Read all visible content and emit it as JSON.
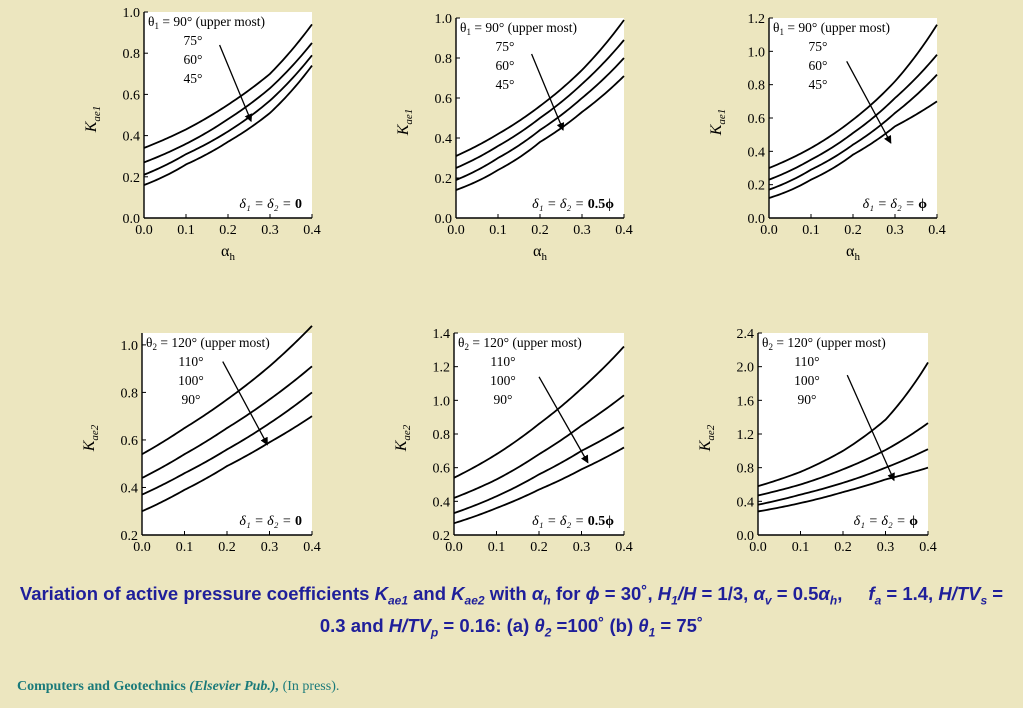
{
  "chart_data": [
    {
      "type": "line",
      "ylabel_base": "K",
      "ylabel_sub": "ae1",
      "xlabel_base": "α",
      "xlabel_sub": "h",
      "xticks": [
        "0.0",
        "0.1",
        "0.2",
        "0.3",
        "0.4"
      ],
      "xlim": [
        0,
        0.4
      ],
      "yticks": [
        "0.0",
        "0.2",
        "0.4",
        "0.6",
        "0.8",
        "1.0"
      ],
      "ylim": [
        0,
        1.0
      ],
      "legend_title_sym": "θ",
      "legend_title_sub": "1",
      "legend_title_rest": " = 90° (upper most)",
      "legend_items": [
        "75°",
        "60°",
        "45°"
      ],
      "condition": {
        "pre": "δ₁ = δ₂ = ",
        "val": "0"
      },
      "arrow": {
        "from": [
          0.18,
          0.84
        ],
        "to": [
          0.255,
          0.47
        ]
      },
      "series": [
        {
          "x": [
            0,
            0.1,
            0.2,
            0.3,
            0.4
          ],
          "values": [
            0.34,
            0.43,
            0.55,
            0.7,
            0.94
          ]
        },
        {
          "x": [
            0,
            0.1,
            0.2,
            0.3,
            0.4
          ],
          "values": [
            0.27,
            0.36,
            0.48,
            0.63,
            0.85
          ]
        },
        {
          "x": [
            0,
            0.1,
            0.2,
            0.3,
            0.4
          ],
          "values": [
            0.21,
            0.31,
            0.42,
            0.57,
            0.79
          ]
        },
        {
          "x": [
            0,
            0.1,
            0.2,
            0.3,
            0.4
          ],
          "values": [
            0.16,
            0.26,
            0.37,
            0.51,
            0.74
          ]
        }
      ]
    },
    {
      "type": "line",
      "ylabel_base": "K",
      "ylabel_sub": "ae1",
      "xlabel_base": "α",
      "xlabel_sub": "h",
      "xticks": [
        "0.0",
        "0.1",
        "0.2",
        "0.3",
        "0.4"
      ],
      "xlim": [
        0,
        0.4
      ],
      "yticks": [
        "0.0",
        "0.2",
        "0.4",
        "0.6",
        "0.8",
        "1.0"
      ],
      "ylim": [
        0,
        1.0
      ],
      "legend_title_sym": "θ",
      "legend_title_sub": "1",
      "legend_title_rest": " = 90° (upper most)",
      "legend_items": [
        "75°",
        "60°",
        "45°"
      ],
      "condition": {
        "pre": "δ₁ = δ₂ = ",
        "val": "0.5ϕ"
      },
      "arrow": {
        "from": [
          0.18,
          0.82
        ],
        "to": [
          0.255,
          0.44
        ]
      },
      "series": [
        {
          "x": [
            0,
            0.1,
            0.2,
            0.3,
            0.4
          ],
          "values": [
            0.31,
            0.42,
            0.56,
            0.74,
            0.99
          ]
        },
        {
          "x": [
            0,
            0.1,
            0.2,
            0.3,
            0.4
          ],
          "values": [
            0.25,
            0.36,
            0.5,
            0.67,
            0.89
          ]
        },
        {
          "x": [
            0,
            0.1,
            0.2,
            0.3,
            0.4
          ],
          "values": [
            0.19,
            0.3,
            0.44,
            0.6,
            0.8
          ]
        },
        {
          "x": [
            0,
            0.1,
            0.2,
            0.3,
            0.4
          ],
          "values": [
            0.14,
            0.24,
            0.38,
            0.53,
            0.71
          ]
        }
      ]
    },
    {
      "type": "line",
      "ylabel_base": "K",
      "ylabel_sub": "ae1",
      "xlabel_base": "α",
      "xlabel_sub": "h",
      "xticks": [
        "0.0",
        "0.1",
        "0.2",
        "0.3",
        "0.4"
      ],
      "xlim": [
        0,
        0.4
      ],
      "yticks": [
        "0.0",
        "0.2",
        "0.4",
        "0.6",
        "0.8",
        "1.0",
        "1.2"
      ],
      "ylim": [
        0,
        1.2
      ],
      "legend_title_sym": "θ",
      "legend_title_sub": "1",
      "legend_title_rest": " = 90° (upper most)",
      "legend_items": [
        "75°",
        "60°",
        "45°"
      ],
      "condition": {
        "pre": "δ₁ = δ₂ = ",
        "val": "ϕ"
      },
      "arrow": {
        "from": [
          0.185,
          0.94
        ],
        "to": [
          0.29,
          0.45
        ]
      },
      "series": [
        {
          "x": [
            0,
            0.1,
            0.2,
            0.3,
            0.4
          ],
          "values": [
            0.3,
            0.42,
            0.59,
            0.82,
            1.16
          ]
        },
        {
          "x": [
            0,
            0.1,
            0.2,
            0.3,
            0.4
          ],
          "values": [
            0.23,
            0.35,
            0.51,
            0.72,
            0.98
          ]
        },
        {
          "x": [
            0,
            0.1,
            0.2,
            0.3,
            0.4
          ],
          "values": [
            0.17,
            0.29,
            0.44,
            0.63,
            0.86
          ]
        },
        {
          "x": [
            0,
            0.1,
            0.2,
            0.3,
            0.4
          ],
          "values": [
            0.12,
            0.23,
            0.38,
            0.55,
            0.7
          ]
        }
      ]
    },
    {
      "type": "line",
      "ylabel_base": "K",
      "ylabel_sub": "ae2",
      "xlabel_base": "α",
      "xlabel_sub": "h",
      "xticks": [
        "0.0",
        "0.1",
        "0.2",
        "0.3",
        "0.4"
      ],
      "xlim": [
        0,
        0.4
      ],
      "yticks": [
        "0.2",
        "0.4",
        "0.6",
        "0.8",
        "1.0"
      ],
      "ylim": [
        0.2,
        1.05
      ],
      "legend_title_sym": "θ",
      "legend_title_sub": "2",
      "legend_title_rest": " = 120° (upper most)",
      "legend_items": [
        "110°",
        "100°",
        "90°"
      ],
      "condition": {
        "pre": "δ₁ = δ₂ = ",
        "val": "0"
      },
      "arrow": {
        "from": [
          0.19,
          0.93
        ],
        "to": [
          0.295,
          0.58
        ]
      },
      "series": [
        {
          "x": [
            0,
            0.1,
            0.2,
            0.3,
            0.4
          ],
          "values": [
            0.54,
            0.65,
            0.77,
            0.91,
            1.08
          ]
        },
        {
          "x": [
            0,
            0.1,
            0.2,
            0.3,
            0.4
          ],
          "values": [
            0.44,
            0.54,
            0.65,
            0.77,
            0.91
          ]
        },
        {
          "x": [
            0,
            0.1,
            0.2,
            0.3,
            0.4
          ],
          "values": [
            0.37,
            0.46,
            0.56,
            0.67,
            0.8
          ]
        },
        {
          "x": [
            0,
            0.1,
            0.2,
            0.3,
            0.4
          ],
          "values": [
            0.3,
            0.39,
            0.49,
            0.59,
            0.7
          ]
        }
      ]
    },
    {
      "type": "line",
      "ylabel_base": "K",
      "ylabel_sub": "ae2",
      "xlabel_base": "α",
      "xlabel_sub": "h",
      "xticks": [
        "0.0",
        "0.1",
        "0.2",
        "0.3",
        "0.4"
      ],
      "xlim": [
        0,
        0.4
      ],
      "yticks": [
        "0.2",
        "0.4",
        "0.6",
        "0.8",
        "1.0",
        "1.2",
        "1.4"
      ],
      "ylim": [
        0.2,
        1.4
      ],
      "legend_title_sym": "θ",
      "legend_title_sub": "2",
      "legend_title_rest": " = 120° (upper most)",
      "legend_items": [
        "110°",
        "100°",
        "90°"
      ],
      "condition": {
        "pre": "δ₁ = δ₂ = ",
        "val": "0.5ϕ"
      },
      "arrow": {
        "from": [
          0.2,
          1.14
        ],
        "to": [
          0.315,
          0.63
        ]
      },
      "series": [
        {
          "x": [
            0,
            0.1,
            0.2,
            0.3,
            0.4
          ],
          "values": [
            0.54,
            0.68,
            0.86,
            1.07,
            1.32
          ]
        },
        {
          "x": [
            0,
            0.1,
            0.2,
            0.3,
            0.4
          ],
          "values": [
            0.42,
            0.53,
            0.68,
            0.85,
            1.03
          ]
        },
        {
          "x": [
            0,
            0.1,
            0.2,
            0.3,
            0.4
          ],
          "values": [
            0.33,
            0.43,
            0.56,
            0.7,
            0.84
          ]
        },
        {
          "x": [
            0,
            0.1,
            0.2,
            0.3,
            0.4
          ],
          "values": [
            0.27,
            0.36,
            0.47,
            0.59,
            0.72
          ]
        }
      ]
    },
    {
      "type": "line",
      "ylabel_base": "K",
      "ylabel_sub": "ae2",
      "xlabel_base": "α",
      "xlabel_sub": "h",
      "xticks": [
        "0.0",
        "0.1",
        "0.2",
        "0.3",
        "0.4"
      ],
      "xlim": [
        0,
        0.4
      ],
      "yticks": [
        "0.0",
        "0.4",
        "0.8",
        "1.2",
        "1.6",
        "2.0",
        "2.4"
      ],
      "ylim": [
        0,
        2.4
      ],
      "legend_title_sym": "θ",
      "legend_title_sub": "2",
      "legend_title_rest": " = 120° (upper most)",
      "legend_items": [
        "110°",
        "100°",
        "90°"
      ],
      "condition": {
        "pre": "δ₁ = δ₂ = ",
        "val": "ϕ"
      },
      "arrow": {
        "from": [
          0.21,
          1.9
        ],
        "to": [
          0.32,
          0.65
        ]
      },
      "series": [
        {
          "x": [
            0,
            0.1,
            0.2,
            0.3,
            0.4
          ],
          "values": [
            0.58,
            0.75,
            1.0,
            1.37,
            2.05
          ]
        },
        {
          "x": [
            0,
            0.1,
            0.2,
            0.3,
            0.4
          ],
          "values": [
            0.47,
            0.6,
            0.78,
            1.01,
            1.33
          ]
        },
        {
          "x": [
            0,
            0.1,
            0.2,
            0.3,
            0.4
          ],
          "values": [
            0.36,
            0.48,
            0.62,
            0.8,
            1.02
          ]
        },
        {
          "x": [
            0,
            0.1,
            0.2,
            0.3,
            0.4
          ],
          "values": [
            0.28,
            0.38,
            0.51,
            0.66,
            0.8
          ]
        }
      ]
    }
  ],
  "caption": {
    "t1": "Variation of active pressure coefficients ",
    "k1": "K",
    "k1s": "ae1",
    "and": " and ",
    "k2": "K",
    "k2s": "ae2",
    "with": " with ",
    "ah": "α",
    "ahs": "h",
    "for": " for ",
    "phi": "ϕ",
    "phi_val": " = 30˚, ",
    "h1": "H",
    "h1s": "1",
    "h1rest": "/",
    "h": "H",
    "hval": " = 1/3, ",
    "av": "α",
    "avs": "v",
    "aveq": " = 0.5",
    "av2": "α",
    "av2s": "h",
    "comma": ",",
    "fa": "f",
    "fas": "a",
    "fa_val": " = 1.4, ",
    "htvs": "H/TV",
    "htvs_s": "s",
    "htvs_val": " = 0.3 and ",
    "htvp": "H/TV",
    "htvp_s": "p",
    "htvp_val": " = 0.16:  (a) ",
    "th2": "θ",
    "th2s": "2",
    "th2val": " =100˚ (b) ",
    "th1": "θ",
    "th1s": "1",
    "th1val": " = 75˚"
  },
  "footer": {
    "journal": "Computers and Geotechnics",
    "publisher": "(Elsevier Pub.),",
    "status": " (In press)."
  }
}
